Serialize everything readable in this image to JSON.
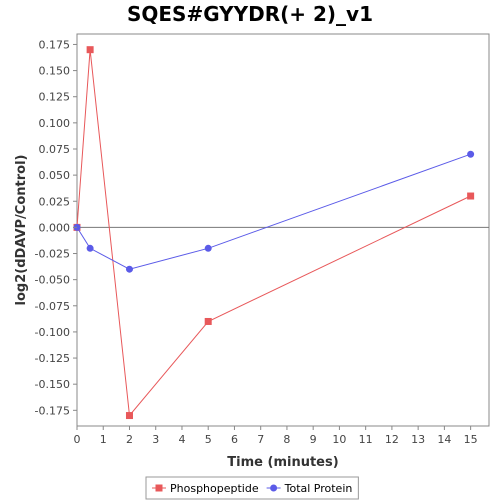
{
  "chart_data": {
    "type": "line",
    "title": "SQES#GYYDR(+ 2)_v1",
    "xlabel": "Time (minutes)",
    "ylabel": "log2(dDAVP/Control)",
    "xlim": [
      0,
      15.7
    ],
    "ylim": [
      -0.19,
      0.185
    ],
    "x_ticks": [
      0,
      1,
      2,
      3,
      4,
      5,
      6,
      7,
      8,
      9,
      10,
      11,
      12,
      13,
      14,
      15
    ],
    "x_tick_labels": [
      "0",
      "1",
      "2",
      "3",
      "4",
      "5",
      "6",
      "7",
      "8",
      "9",
      "10",
      "11",
      "12",
      "13",
      "14",
      "15"
    ],
    "y_ticks": [
      0.175,
      0.15,
      0.125,
      0.1,
      0.075,
      0.05,
      0.025,
      0.0,
      -0.025,
      -0.05,
      -0.075,
      -0.1,
      -0.125,
      -0.15,
      -0.175
    ],
    "y_tick_labels": [
      "0.175",
      "0.150",
      "0.125",
      "0.100",
      "0.075",
      "0.050",
      "0.025",
      "0.000",
      "-0.025",
      "-0.050",
      "-0.075",
      "-0.100",
      "-0.125",
      "-0.150",
      "-0.175"
    ],
    "grid": false,
    "zero_line": true,
    "legend_position": "bottom",
    "series": [
      {
        "name": "Phosphopeptide",
        "color": "#e8585a",
        "marker": "square",
        "x": [
          0,
          0.5,
          2,
          5,
          15
        ],
        "y": [
          0.0,
          0.17,
          -0.18,
          -0.09,
          0.03
        ]
      },
      {
        "name": "Total Protein",
        "color": "#5b5be8",
        "marker": "circle",
        "x": [
          0,
          0.5,
          2,
          5,
          15
        ],
        "y": [
          0.0,
          -0.02,
          -0.04,
          -0.02,
          0.07
        ]
      }
    ]
  }
}
